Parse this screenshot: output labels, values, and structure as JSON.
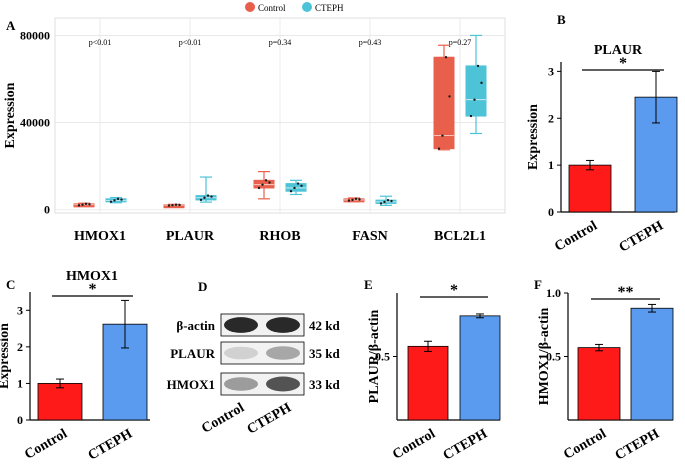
{
  "legend": [
    {
      "name": "Control",
      "color": "#e8604c"
    },
    {
      "name": "CTEPH",
      "color": "#4dc3d8"
    }
  ],
  "colors": {
    "control_bar": "#ff1a1a",
    "cteph_bar": "#5b9bef",
    "control_box": "#e8604c",
    "cteph_box": "#4dc3d8"
  },
  "chart_data": [
    {
      "panel": "A",
      "type": "box",
      "title": "",
      "ylabel": "Expression",
      "ylim": [
        -1500,
        88000
      ],
      "yticks": [
        0,
        40000,
        80000
      ],
      "ytick_labels": [
        "0",
        "40000",
        "80000"
      ],
      "categories": [
        "HMOX1",
        "PLAUR",
        "RHOB",
        "FASN",
        "BCL2L1"
      ],
      "pvalues": [
        "p<0.01",
        "p<0.01",
        "p=0.34",
        "p=0.43",
        "p=0.27"
      ],
      "series": [
        {
          "name": "Control",
          "boxes": [
            {
              "min": 1600,
              "q1": 2000,
              "median": 2300,
              "q3": 2700,
              "max": 3000
            },
            {
              "min": 1700,
              "q1": 1900,
              "median": 2100,
              "q3": 2300,
              "max": 2500
            },
            {
              "min": 5000,
              "q1": 10000,
              "median": 11500,
              "q3": 13500,
              "max": 17500
            },
            {
              "min": 3700,
              "q1": 4200,
              "median": 4500,
              "q3": 5000,
              "max": 5400
            },
            {
              "min": 27500,
              "q1": 28000,
              "median": 34000,
              "q3": 70000,
              "max": 75500
            }
          ]
        },
        {
          "name": "CTEPH",
          "boxes": [
            {
              "min": 3200,
              "q1": 3700,
              "median": 4300,
              "q3": 5000,
              "max": 5600
            },
            {
              "min": 3500,
              "q1": 4500,
              "median": 5500,
              "q3": 6500,
              "max": 15000
            },
            {
              "min": 7000,
              "q1": 8500,
              "median": 10000,
              "q3": 12000,
              "max": 13500
            },
            {
              "min": 2000,
              "q1": 2900,
              "median": 3600,
              "q3": 4400,
              "max": 6200
            },
            {
              "min": 35000,
              "q1": 43000,
              "median": 50500,
              "q3": 66000,
              "max": 80000
            }
          ]
        }
      ]
    },
    {
      "panel": "B",
      "type": "bar",
      "title": "PLAUR",
      "ylabel": "Expression",
      "ylim": [
        0,
        3.2
      ],
      "yticks": [
        0,
        1,
        2,
        3
      ],
      "ytick_labels": [
        "0",
        "1",
        "2",
        "3"
      ],
      "categories": [
        "Control",
        "CTEPH"
      ],
      "values": [
        1.0,
        2.45
      ],
      "errors": [
        0.1,
        0.55
      ],
      "significance": "*"
    },
    {
      "panel": "C",
      "type": "bar",
      "title": "HMOX1",
      "ylabel": "Expression",
      "ylim": [
        0,
        3.5
      ],
      "yticks": [
        0,
        1,
        2,
        3
      ],
      "ytick_labels": [
        "0",
        "1",
        "2",
        "3"
      ],
      "categories": [
        "Control",
        "CTEPH"
      ],
      "values": [
        1.0,
        2.62
      ],
      "errors": [
        0.12,
        0.65
      ],
      "significance": "*"
    },
    {
      "panel": "E",
      "type": "bar",
      "title": "",
      "ylabel": "PLAUR/β-actin",
      "ylim": [
        0,
        1.0
      ],
      "yticks": [
        0.5
      ],
      "ytick_labels": [
        "0.5"
      ],
      "categories": [
        "Control",
        "CTEPH"
      ],
      "values": [
        0.58,
        0.82
      ],
      "errors": [
        0.04,
        0.015
      ],
      "significance": "*"
    },
    {
      "panel": "F",
      "type": "bar",
      "title": "",
      "ylabel": "HMOX1/β-actin",
      "ylim": [
        0,
        1.0
      ],
      "yticks": [
        0.5,
        1.0
      ],
      "ytick_labels": [
        "0.5",
        "1.0"
      ],
      "categories": [
        "Control",
        "CTEPH"
      ],
      "values": [
        0.57,
        0.88
      ],
      "errors": [
        0.025,
        0.03
      ],
      "significance": "**"
    }
  ],
  "blot": {
    "panel": "D",
    "proteins": [
      "β-actin",
      "PLAUR",
      "HMOX1"
    ],
    "sizes": [
      "42 kd",
      "35 kd",
      "33 kd"
    ],
    "lanes": [
      "Control",
      "CTEPH"
    ]
  }
}
